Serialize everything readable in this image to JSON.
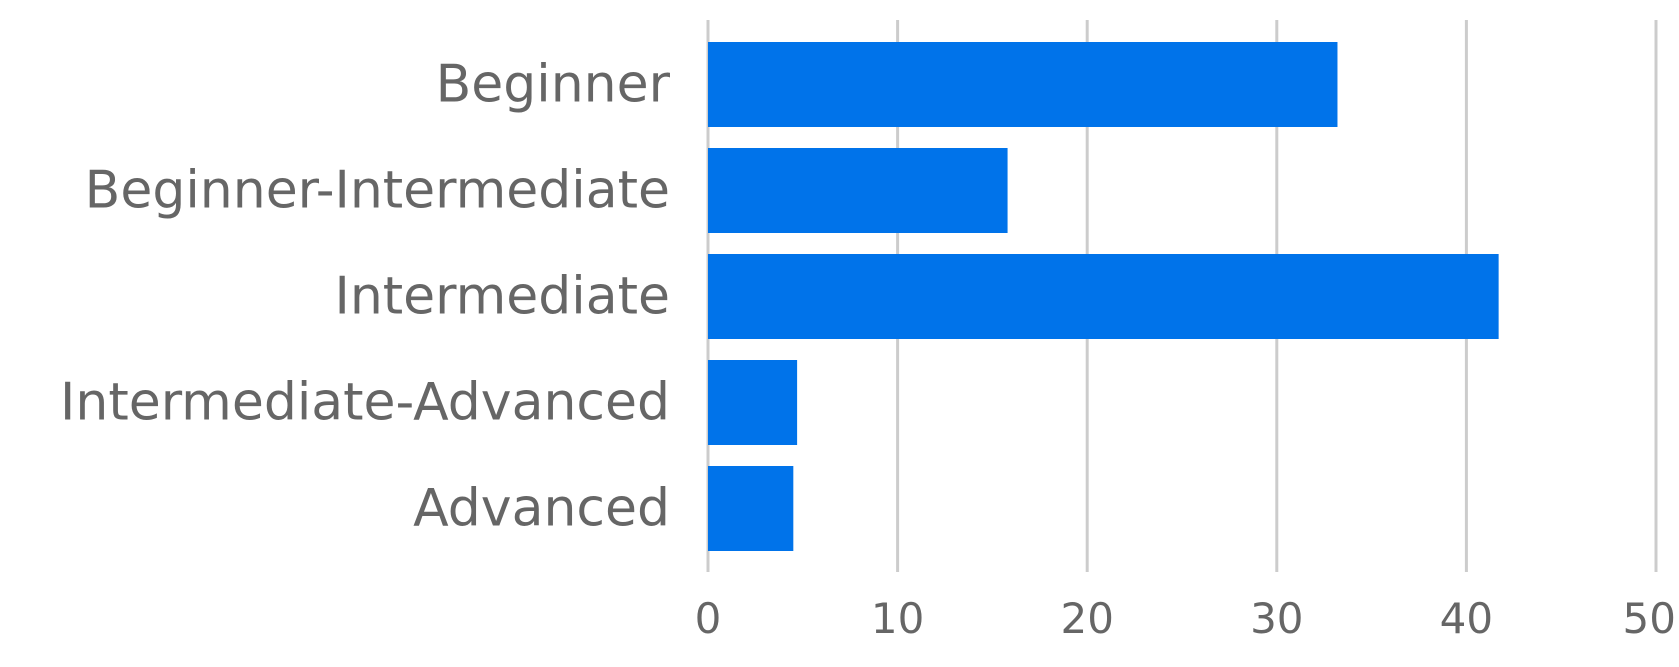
{
  "chart_data": {
    "type": "bar",
    "orientation": "horizontal",
    "categories": [
      "Beginner",
      "Beginner-Intermediate",
      "Intermediate",
      "Intermediate-Advanced",
      "Advanced"
    ],
    "values": [
      33.2,
      15.8,
      41.7,
      4.7,
      4.5
    ],
    "title": "",
    "xlabel": "",
    "ylabel": "",
    "xlim": [
      0,
      50
    ],
    "xticks": [
      "0",
      "10",
      "20",
      "30",
      "40",
      "50"
    ],
    "grid": true,
    "legend": "none",
    "bar_color": "#0073ea",
    "grid_color": "#cccccc",
    "text_color": "#666666"
  }
}
